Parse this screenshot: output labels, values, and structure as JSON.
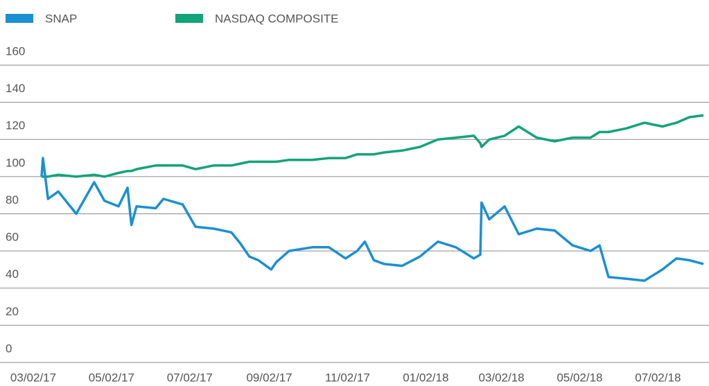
{
  "chart_data": {
    "type": "line",
    "x": [
      "03/02/17",
      "03/03/17",
      "03/07/17",
      "03/15/17",
      "03/29/17",
      "04/12/17",
      "04/20/17",
      "05/01/17",
      "05/08/17",
      "05/11/17",
      "05/15/17",
      "05/30/17",
      "06/05/17",
      "06/20/17",
      "06/30/17",
      "07/14/17",
      "07/28/17",
      "08/04/17",
      "08/11/17",
      "08/18/17",
      "08/28/17",
      "09/01/17",
      "09/11/17",
      "09/29/17",
      "10/12/17",
      "10/25/17",
      "11/03/17",
      "11/09/17",
      "11/16/17",
      "11/24/17",
      "12/08/17",
      "12/22/17",
      "01/05/18",
      "01/19/18",
      "02/02/18",
      "02/07/18",
      "02/08/18",
      "02/14/18",
      "02/26/18",
      "03/09/18",
      "03/23/18",
      "04/06/18",
      "04/20/18",
      "05/04/18",
      "05/11/18",
      "05/18/18",
      "06/01/18",
      "06/15/18",
      "06/29/18",
      "07/10/18",
      "07/20/18",
      "07/31/18"
    ],
    "series": [
      {
        "name": "SNAP",
        "color": "#1b8fd2",
        "values": [
          100,
          110,
          88,
          92,
          80,
          97,
          87,
          84,
          94,
          74,
          84,
          83,
          88,
          85,
          73,
          72,
          70,
          64,
          57,
          55,
          50,
          54,
          60,
          62,
          62,
          56,
          60,
          65,
          55,
          53,
          52,
          57,
          65,
          62,
          56,
          58,
          86,
          77,
          84,
          69,
          72,
          71,
          63,
          60,
          63,
          46,
          45,
          44,
          50,
          56,
          55,
          53
        ]
      },
      {
        "name": "NASDAQ COMPOSITE",
        "color": "#13a37a",
        "values": [
          100,
          100,
          100,
          101,
          100,
          101,
          100,
          102,
          103,
          103,
          104,
          106,
          106,
          106,
          104,
          106,
          106,
          107,
          108,
          108,
          108,
          108,
          109,
          109,
          110,
          110,
          112,
          112,
          112,
          113,
          114,
          116,
          120,
          121,
          122,
          118,
          116,
          120,
          122,
          127,
          121,
          119,
          121,
          121,
          124,
          124,
          126,
          129,
          127,
          129,
          132,
          133
        ]
      }
    ],
    "ylim": [
      0,
      160
    ],
    "yticks": [
      0,
      20,
      40,
      60,
      80,
      100,
      120,
      140,
      160
    ],
    "xticks": [
      "03/02/17",
      "05/02/17",
      "07/02/17",
      "09/02/17",
      "11/02/17",
      "01/02/18",
      "03/02/18",
      "05/02/18",
      "07/02/18"
    ],
    "grid": true
  }
}
